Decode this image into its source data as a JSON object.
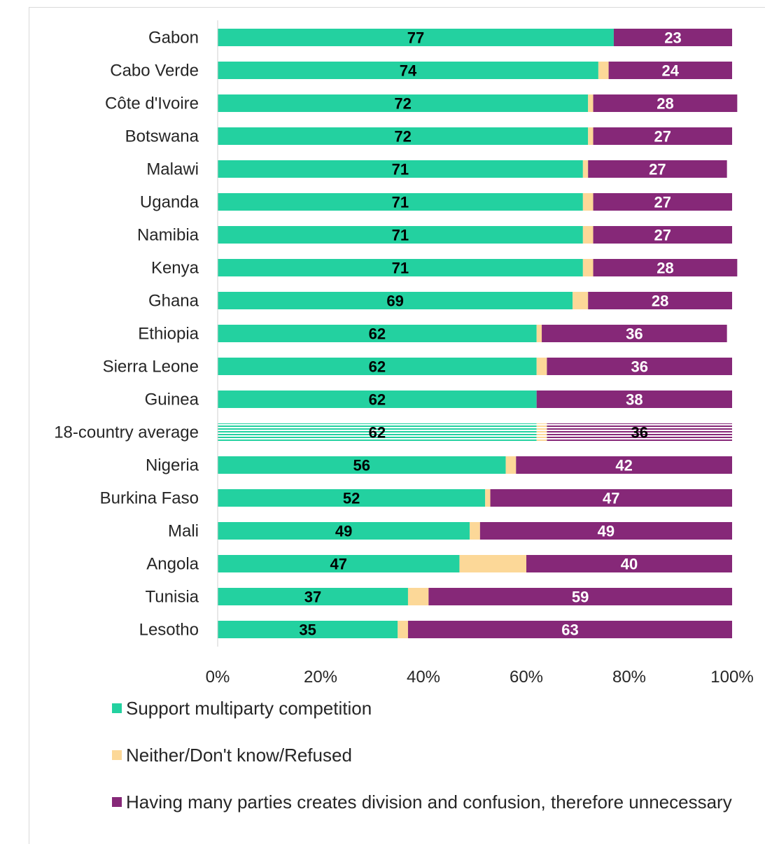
{
  "chart_data": {
    "type": "bar",
    "orientation": "horizontal",
    "stacked": true,
    "categories": [
      "Gabon",
      "Cabo Verde",
      "Côte d'Ivoire",
      "Botswana",
      "Malawi",
      "Uganda",
      "Namibia",
      "Kenya",
      "Ghana",
      "Ethiopia",
      "Sierra Leone",
      "Guinea",
      "18-country average",
      "Nigeria",
      "Burkina Faso",
      "Mali",
      "Angola",
      "Tunisia",
      "Lesotho"
    ],
    "series": [
      {
        "name": "Support multiparty competition",
        "color": "#23d1a0",
        "label_color": "#000000",
        "values": [
          77,
          74,
          72,
          72,
          71,
          71,
          71,
          71,
          69,
          62,
          62,
          62,
          62,
          56,
          52,
          49,
          47,
          37,
          35
        ]
      },
      {
        "name": "Neither/Don't know/Refused",
        "color": "#fcd898",
        "values": [
          0,
          2,
          1,
          1,
          1,
          2,
          2,
          2,
          3,
          1,
          2,
          0,
          2,
          2,
          1,
          2,
          13,
          4,
          2
        ]
      },
      {
        "name": "Having many parties creates division and confusion, therefore unnecessary",
        "color": "#862878",
        "label_color": "#ffffff",
        "values": [
          23,
          24,
          28,
          27,
          27,
          27,
          27,
          28,
          28,
          36,
          36,
          38,
          36,
          42,
          47,
          49,
          40,
          59,
          63
        ]
      }
    ],
    "labeled_series": [
      0,
      2
    ],
    "hatched_category": "18-country average",
    "xlim": [
      0,
      100
    ],
    "xticks": [
      "0%",
      "20%",
      "40%",
      "60%",
      "80%",
      "100%"
    ],
    "legend_position": "bottom",
    "title": "",
    "xlabel": "",
    "ylabel": ""
  }
}
